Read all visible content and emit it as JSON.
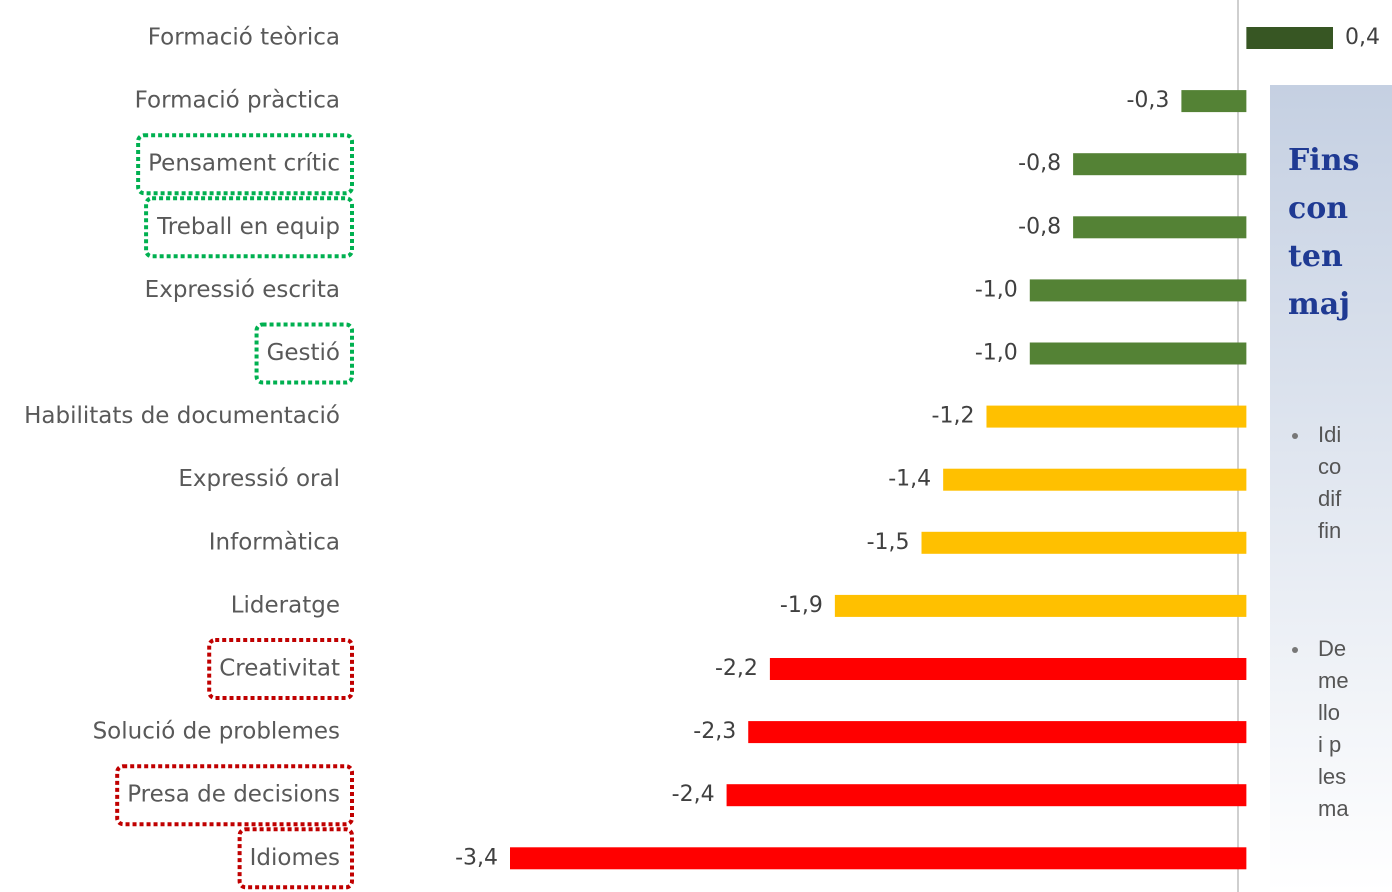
{
  "chart_data": {
    "type": "bar",
    "categories": [
      "Formació teòrica",
      "Formació pràctica",
      "Pensament crític",
      "Treball en equip",
      "Expressió escrita",
      "Gestió",
      "Habilitats de documentació",
      "Expressió oral",
      "Informàtica",
      "Lideratge",
      "Creativitat",
      "Solució de problemes",
      "Presa de decisions",
      "Idiomes"
    ],
    "values": [
      0.4,
      -0.3,
      -0.8,
      -0.8,
      -1.0,
      -1.0,
      -1.2,
      -1.4,
      -1.5,
      -1.9,
      -2.2,
      -2.3,
      -2.4,
      -3.4
    ],
    "value_labels": [
      "0,4",
      "-0,3",
      "-0,8",
      "-0,8",
      "-1,0",
      "-1,0",
      "-1,2",
      "-1,4",
      "-1,5",
      "-1,9",
      "-2,2",
      "-2,3",
      "-2,4",
      "-3,4"
    ],
    "colors": [
      "#375623",
      "#548235",
      "#548235",
      "#548235",
      "#548235",
      "#548235",
      "#ffc000",
      "#ffc000",
      "#ffc000",
      "#ffc000",
      "#ff0000",
      "#ff0000",
      "#ff0000",
      "#ff0000"
    ],
    "highlight_colors": [
      null,
      null,
      "#00b050",
      "#00b050",
      null,
      "#00b050",
      null,
      null,
      null,
      null,
      "#c00000",
      null,
      "#c00000",
      "#c00000"
    ],
    "xlim": [
      -3.4,
      0.4
    ]
  },
  "panel": {
    "heading": [
      "Fins",
      "con",
      "ten",
      "maj"
    ],
    "bullets": [
      [
        "Idi",
        "co",
        "dif",
        "fin"
      ],
      [
        "De",
        "me",
        "llo",
        "i p",
        "les",
        "ma"
      ]
    ]
  }
}
